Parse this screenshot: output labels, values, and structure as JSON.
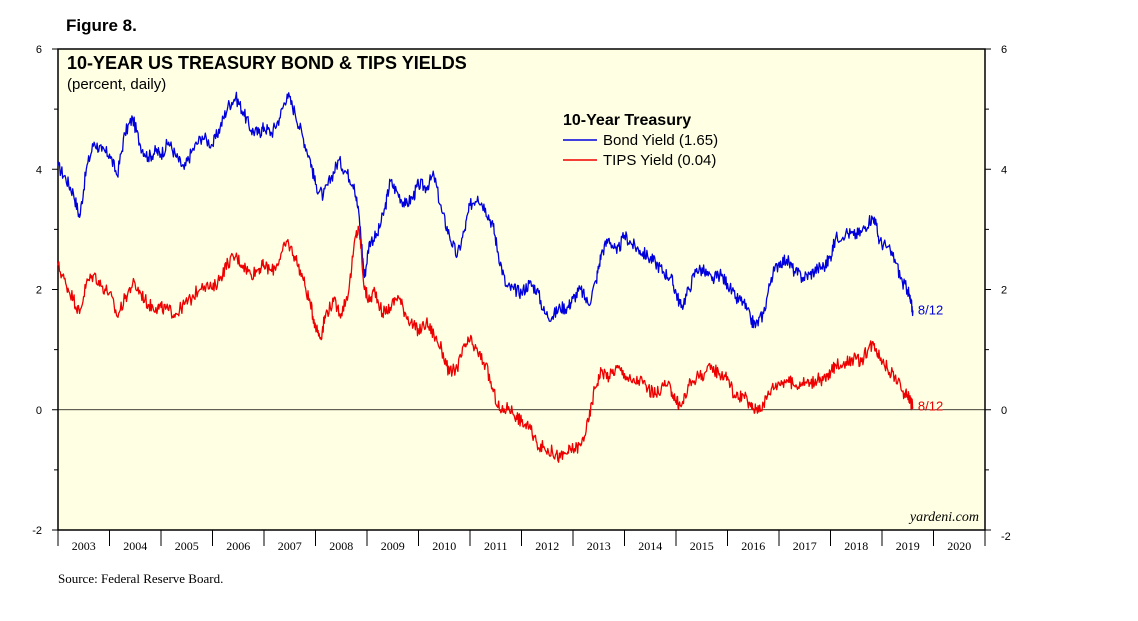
{
  "figure_label": "Figure 8.",
  "source": "Source: Federal Reserve Board.",
  "chart_data": {
    "type": "line",
    "title": "10-YEAR US TREASURY BOND & TIPS YIELDS",
    "subtitle": "(percent, daily)",
    "watermark": "yardeni.com",
    "legend": {
      "title": "10-Year Treasury",
      "position": "top-center",
      "entries": [
        "Bond Yield (1.65)",
        "TIPS Yield (0.04)"
      ]
    },
    "xlabel": "",
    "ylabel": "",
    "xlim": [
      2003.0,
      2021.0
    ],
    "ylim": [
      -2,
      6
    ],
    "yticks_left": [
      "-2",
      "0",
      "2",
      "4",
      "6"
    ],
    "yticks_right": [
      "-2",
      "0",
      "2",
      "4",
      "6"
    ],
    "x_tick_labels": [
      "2003",
      "2004",
      "2005",
      "2006",
      "2007",
      "2008",
      "2009",
      "2010",
      "2011",
      "2012",
      "2013",
      "2014",
      "2015",
      "2016",
      "2017",
      "2018",
      "2019",
      "2020"
    ],
    "zero_line": true,
    "series": [
      {
        "name": "Bond Yield",
        "color": "#0000dd",
        "end_label": "8/12",
        "points": [
          [
            2003.0,
            4.05
          ],
          [
            2003.15,
            3.85
          ],
          [
            2003.3,
            3.6
          ],
          [
            2003.42,
            3.2
          ],
          [
            2003.55,
            4.0
          ],
          [
            2003.7,
            4.45
          ],
          [
            2003.85,
            4.3
          ],
          [
            2004.0,
            4.25
          ],
          [
            2004.15,
            3.9
          ],
          [
            2004.3,
            4.6
          ],
          [
            2004.45,
            4.85
          ],
          [
            2004.6,
            4.4
          ],
          [
            2004.75,
            4.2
          ],
          [
            2004.9,
            4.3
          ],
          [
            2005.0,
            4.25
          ],
          [
            2005.15,
            4.45
          ],
          [
            2005.3,
            4.2
          ],
          [
            2005.45,
            4.0
          ],
          [
            2005.6,
            4.3
          ],
          [
            2005.8,
            4.55
          ],
          [
            2006.0,
            4.4
          ],
          [
            2006.15,
            4.7
          ],
          [
            2006.3,
            5.05
          ],
          [
            2006.45,
            5.2
          ],
          [
            2006.6,
            4.95
          ],
          [
            2006.75,
            4.65
          ],
          [
            2006.9,
            4.6
          ],
          [
            2007.0,
            4.7
          ],
          [
            2007.15,
            4.6
          ],
          [
            2007.3,
            4.85
          ],
          [
            2007.45,
            5.25
          ],
          [
            2007.6,
            4.95
          ],
          [
            2007.75,
            4.55
          ],
          [
            2007.9,
            4.15
          ],
          [
            2008.0,
            3.75
          ],
          [
            2008.15,
            3.55
          ],
          [
            2008.3,
            3.85
          ],
          [
            2008.45,
            4.15
          ],
          [
            2008.6,
            3.95
          ],
          [
            2008.75,
            3.75
          ],
          [
            2008.85,
            3.2
          ],
          [
            2008.95,
            2.2
          ],
          [
            2009.05,
            2.8
          ],
          [
            2009.2,
            2.9
          ],
          [
            2009.35,
            3.35
          ],
          [
            2009.45,
            3.8
          ],
          [
            2009.6,
            3.6
          ],
          [
            2009.75,
            3.4
          ],
          [
            2009.9,
            3.55
          ],
          [
            2010.0,
            3.75
          ],
          [
            2010.15,
            3.7
          ],
          [
            2010.3,
            3.9
          ],
          [
            2010.45,
            3.3
          ],
          [
            2010.6,
            2.9
          ],
          [
            2010.75,
            2.55
          ],
          [
            2010.9,
            3.0
          ],
          [
            2011.0,
            3.4
          ],
          [
            2011.15,
            3.55
          ],
          [
            2011.3,
            3.35
          ],
          [
            2011.45,
            3.05
          ],
          [
            2011.55,
            2.6
          ],
          [
            2011.7,
            2.05
          ],
          [
            2011.85,
            2.0
          ],
          [
            2012.0,
            1.95
          ],
          [
            2012.15,
            2.1
          ],
          [
            2012.3,
            2.0
          ],
          [
            2012.45,
            1.6
          ],
          [
            2012.6,
            1.55
          ],
          [
            2012.75,
            1.7
          ],
          [
            2012.9,
            1.7
          ],
          [
            2013.0,
            1.85
          ],
          [
            2013.15,
            2.0
          ],
          [
            2013.3,
            1.75
          ],
          [
            2013.45,
            2.15
          ],
          [
            2013.55,
            2.6
          ],
          [
            2013.7,
            2.85
          ],
          [
            2013.85,
            2.6
          ],
          [
            2014.0,
            2.9
          ],
          [
            2014.15,
            2.75
          ],
          [
            2014.3,
            2.65
          ],
          [
            2014.45,
            2.55
          ],
          [
            2014.6,
            2.45
          ],
          [
            2014.75,
            2.3
          ],
          [
            2014.9,
            2.2
          ],
          [
            2015.0,
            1.95
          ],
          [
            2015.1,
            1.7
          ],
          [
            2015.25,
            2.0
          ],
          [
            2015.4,
            2.35
          ],
          [
            2015.55,
            2.3
          ],
          [
            2015.7,
            2.15
          ],
          [
            2015.85,
            2.25
          ],
          [
            2016.0,
            2.1
          ],
          [
            2016.15,
            1.85
          ],
          [
            2016.3,
            1.8
          ],
          [
            2016.45,
            1.5
          ],
          [
            2016.55,
            1.4
          ],
          [
            2016.7,
            1.6
          ],
          [
            2016.85,
            2.2
          ],
          [
            2017.0,
            2.45
          ],
          [
            2017.15,
            2.5
          ],
          [
            2017.3,
            2.3
          ],
          [
            2017.45,
            2.2
          ],
          [
            2017.6,
            2.25
          ],
          [
            2017.75,
            2.35
          ],
          [
            2017.9,
            2.4
          ],
          [
            2018.0,
            2.55
          ],
          [
            2018.1,
            2.85
          ],
          [
            2018.3,
            2.95
          ],
          [
            2018.45,
            2.9
          ],
          [
            2018.6,
            2.95
          ],
          [
            2018.75,
            3.15
          ],
          [
            2018.85,
            3.2
          ],
          [
            2018.95,
            2.8
          ],
          [
            2019.1,
            2.7
          ],
          [
            2019.25,
            2.5
          ],
          [
            2019.4,
            2.1
          ],
          [
            2019.5,
            2.0
          ],
          [
            2019.55,
            1.8
          ],
          [
            2019.6,
            1.65
          ]
        ]
      },
      {
        "name": "TIPS Yield",
        "color": "#ee0000",
        "end_label": "8/12",
        "points": [
          [
            2003.0,
            2.4
          ],
          [
            2003.15,
            2.1
          ],
          [
            2003.3,
            1.85
          ],
          [
            2003.42,
            1.6
          ],
          [
            2003.55,
            2.1
          ],
          [
            2003.7,
            2.25
          ],
          [
            2003.85,
            2.05
          ],
          [
            2004.0,
            1.95
          ],
          [
            2004.15,
            1.55
          ],
          [
            2004.3,
            1.85
          ],
          [
            2004.45,
            2.1
          ],
          [
            2004.6,
            1.95
          ],
          [
            2004.75,
            1.75
          ],
          [
            2004.9,
            1.7
          ],
          [
            2005.0,
            1.7
          ],
          [
            2005.15,
            1.65
          ],
          [
            2005.3,
            1.6
          ],
          [
            2005.45,
            1.75
          ],
          [
            2005.6,
            1.85
          ],
          [
            2005.8,
            2.1
          ],
          [
            2006.0,
            2.0
          ],
          [
            2006.15,
            2.2
          ],
          [
            2006.3,
            2.45
          ],
          [
            2006.45,
            2.55
          ],
          [
            2006.6,
            2.4
          ],
          [
            2006.75,
            2.25
          ],
          [
            2006.9,
            2.35
          ],
          [
            2007.0,
            2.4
          ],
          [
            2007.15,
            2.3
          ],
          [
            2007.3,
            2.5
          ],
          [
            2007.45,
            2.8
          ],
          [
            2007.6,
            2.55
          ],
          [
            2007.75,
            2.2
          ],
          [
            2007.9,
            1.75
          ],
          [
            2008.0,
            1.4
          ],
          [
            2008.1,
            1.2
          ],
          [
            2008.2,
            1.6
          ],
          [
            2008.35,
            1.8
          ],
          [
            2008.5,
            1.6
          ],
          [
            2008.65,
            2.0
          ],
          [
            2008.78,
            2.9
          ],
          [
            2008.85,
            3.0
          ],
          [
            2008.95,
            2.0
          ],
          [
            2009.05,
            1.8
          ],
          [
            2009.15,
            2.0
          ],
          [
            2009.3,
            1.6
          ],
          [
            2009.45,
            1.7
          ],
          [
            2009.6,
            1.9
          ],
          [
            2009.75,
            1.6
          ],
          [
            2009.9,
            1.4
          ],
          [
            2010.0,
            1.3
          ],
          [
            2010.15,
            1.45
          ],
          [
            2010.3,
            1.25
          ],
          [
            2010.45,
            1.0
          ],
          [
            2010.6,
            0.6
          ],
          [
            2010.75,
            0.7
          ],
          [
            2010.9,
            1.05
          ],
          [
            2011.0,
            1.15
          ],
          [
            2011.15,
            0.95
          ],
          [
            2011.3,
            0.75
          ],
          [
            2011.45,
            0.3
          ],
          [
            2011.6,
            -0.05
          ],
          [
            2011.75,
            0.05
          ],
          [
            2011.9,
            -0.1
          ],
          [
            2012.0,
            -0.2
          ],
          [
            2012.15,
            -0.3
          ],
          [
            2012.3,
            -0.55
          ],
          [
            2012.45,
            -0.65
          ],
          [
            2012.6,
            -0.7
          ],
          [
            2012.75,
            -0.8
          ],
          [
            2012.9,
            -0.7
          ],
          [
            2013.0,
            -0.65
          ],
          [
            2013.15,
            -0.6
          ],
          [
            2013.3,
            -0.2
          ],
          [
            2013.42,
            0.35
          ],
          [
            2013.55,
            0.65
          ],
          [
            2013.7,
            0.55
          ],
          [
            2013.85,
            0.7
          ],
          [
            2014.0,
            0.6
          ],
          [
            2014.15,
            0.45
          ],
          [
            2014.3,
            0.5
          ],
          [
            2014.45,
            0.35
          ],
          [
            2014.6,
            0.25
          ],
          [
            2014.75,
            0.4
          ],
          [
            2014.9,
            0.35
          ],
          [
            2015.0,
            0.15
          ],
          [
            2015.1,
            0.05
          ],
          [
            2015.25,
            0.4
          ],
          [
            2015.4,
            0.55
          ],
          [
            2015.55,
            0.6
          ],
          [
            2015.7,
            0.7
          ],
          [
            2015.85,
            0.6
          ],
          [
            2016.0,
            0.55
          ],
          [
            2016.15,
            0.2
          ],
          [
            2016.3,
            0.25
          ],
          [
            2016.45,
            0.05
          ],
          [
            2016.55,
            0.0
          ],
          [
            2016.7,
            0.1
          ],
          [
            2016.85,
            0.35
          ],
          [
            2017.0,
            0.45
          ],
          [
            2017.15,
            0.5
          ],
          [
            2017.3,
            0.4
          ],
          [
            2017.45,
            0.45
          ],
          [
            2017.6,
            0.45
          ],
          [
            2017.75,
            0.5
          ],
          [
            2017.9,
            0.5
          ],
          [
            2018.0,
            0.6
          ],
          [
            2018.1,
            0.75
          ],
          [
            2018.3,
            0.8
          ],
          [
            2018.45,
            0.85
          ],
          [
            2018.6,
            0.8
          ],
          [
            2018.75,
            1.05
          ],
          [
            2018.85,
            1.1
          ],
          [
            2018.95,
            0.9
          ],
          [
            2019.1,
            0.7
          ],
          [
            2019.25,
            0.55
          ],
          [
            2019.4,
            0.3
          ],
          [
            2019.5,
            0.25
          ],
          [
            2019.55,
            0.15
          ],
          [
            2019.6,
            0.04
          ]
        ]
      }
    ]
  }
}
